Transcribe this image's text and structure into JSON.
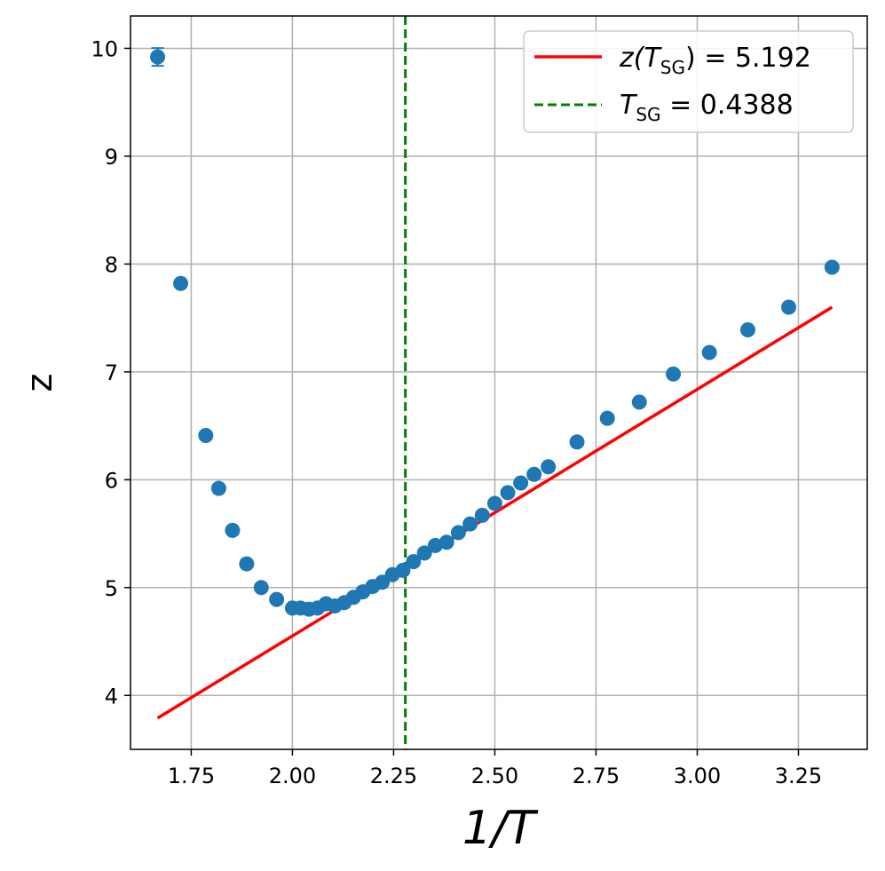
{
  "chart_data": {
    "type": "scatter",
    "xlabel": "1/T",
    "ylabel": "z",
    "xlim": [
      1.6,
      3.42
    ],
    "ylim": [
      3.5,
      10.3
    ],
    "x_ticks": [
      1.75,
      2.0,
      2.25,
      2.5,
      2.75,
      3.0,
      3.25
    ],
    "x_tick_labels": [
      "1.75",
      "2.00",
      "2.25",
      "2.50",
      "2.75",
      "3.00",
      "3.25"
    ],
    "y_ticks": [
      4,
      5,
      6,
      7,
      8,
      9,
      10
    ],
    "y_tick_labels": [
      "4",
      "5",
      "6",
      "7",
      "8",
      "9",
      "10"
    ],
    "grid": true,
    "legend_position": "top-right",
    "colors": {
      "points": "#1f77b4",
      "fit": "#ff0000",
      "critical": "#008000"
    },
    "points": {
      "x": [
        1.667,
        1.724,
        1.786,
        1.818,
        1.852,
        1.887,
        1.923,
        1.961,
        2.0,
        2.02,
        2.041,
        2.062,
        2.083,
        2.105,
        2.128,
        2.151,
        2.174,
        2.198,
        2.222,
        2.247,
        2.273,
        2.299,
        2.326,
        2.353,
        2.381,
        2.41,
        2.439,
        2.469,
        2.5,
        2.532,
        2.564,
        2.597,
        2.632,
        2.703,
        2.778,
        2.857,
        2.941,
        3.03,
        3.125,
        3.226,
        3.333
      ],
      "y": [
        9.92,
        7.82,
        6.41,
        5.92,
        5.53,
        5.22,
        5.0,
        4.89,
        4.81,
        4.81,
        4.8,
        4.81,
        4.85,
        4.83,
        4.86,
        4.91,
        4.96,
        5.01,
        5.05,
        5.12,
        5.16,
        5.24,
        5.32,
        5.39,
        5.42,
        5.51,
        5.59,
        5.67,
        5.78,
        5.88,
        5.97,
        6.05,
        6.12,
        6.35,
        6.57,
        6.72,
        6.98,
        7.18,
        7.39,
        7.6,
        7.97
      ]
    },
    "fit_line": {
      "label_main": "z(T",
      "label_sub": "SG",
      "label_tail": ") = 5.192",
      "x": [
        1.667,
        3.333
      ],
      "y": [
        3.79,
        7.6
      ]
    },
    "critical_line": {
      "label_main": "T",
      "label_sub": "SG",
      "label_tail": " = 0.4388",
      "x": 2.279
    }
  }
}
